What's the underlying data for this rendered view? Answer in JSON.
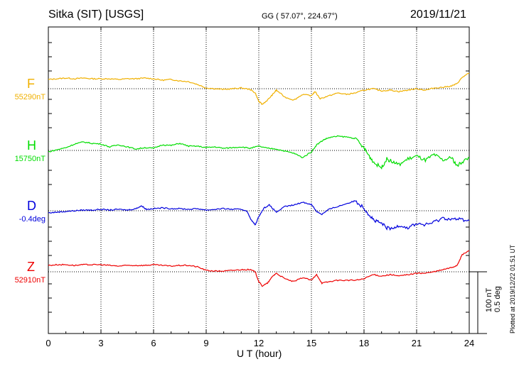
{
  "header": {
    "station": "Sitka (SIT)  [USGS]",
    "coords": "GG ( 57.07°, 224.67°)",
    "date": "2019/11/21"
  },
  "plotted": "Plotted at 2019/12/22 01:51  UT",
  "scale": {
    "nt": "100 nT",
    "deg": "0.5 deg"
  },
  "chart_data": {
    "type": "line",
    "xlabel": "U T (hour)",
    "xlim": [
      0,
      24
    ],
    "xticks": [
      0,
      3,
      6,
      9,
      12,
      15,
      18,
      21,
      24
    ],
    "xtick_labels": [
      "0",
      "3",
      "6",
      "9",
      "12",
      "15",
      "18",
      "21",
      "24"
    ],
    "grid": true,
    "series": [
      {
        "name": "F",
        "baseline_label": "55290nT",
        "color": "#f0b000",
        "x": [
          0,
          0.5,
          1,
          1.5,
          2,
          2.5,
          3,
          3.5,
          4,
          4.5,
          5,
          5.5,
          6,
          6.5,
          7,
          7.5,
          8,
          8.5,
          9,
          9.5,
          10,
          10.5,
          11,
          11.5,
          11.8,
          12,
          12.2,
          12.5,
          12.8,
          13,
          13.5,
          14,
          14.5,
          15,
          15.2,
          15.5,
          16,
          16.5,
          17,
          17.5,
          18,
          18.5,
          19,
          19.5,
          20,
          20.5,
          21,
          21.5,
          22,
          22.5,
          23,
          23.3,
          23.6,
          24
        ],
        "values": [
          13,
          14,
          15,
          14,
          15,
          14,
          14,
          14,
          13,
          14,
          14,
          15,
          14,
          12,
          13,
          11,
          10,
          6,
          1,
          0,
          -1,
          0,
          1,
          -1,
          -6,
          -18,
          -22,
          -16,
          -8,
          -2,
          -12,
          -16,
          -8,
          -10,
          -4,
          -14,
          -10,
          -6,
          -8,
          -6,
          -2,
          0,
          -3,
          -2,
          -4,
          -2,
          0,
          -2,
          1,
          2,
          4,
          7,
          16,
          22
        ]
      },
      {
        "name": "H",
        "baseline_label": "15750nT",
        "color": "#00dd00",
        "x": [
          0,
          0.5,
          1,
          1.5,
          2,
          2.5,
          3,
          3.5,
          4,
          4.5,
          5,
          5.5,
          6,
          6.5,
          7,
          7.5,
          8,
          8.5,
          9,
          9.5,
          10,
          10.5,
          11,
          11.5,
          12,
          12.5,
          13,
          13.5,
          14,
          14.5,
          15,
          15.3,
          15.7,
          16,
          16.5,
          17,
          17.5,
          18,
          18.3,
          18.6,
          19,
          19.3,
          19.6,
          20,
          20.5,
          21,
          21.5,
          22,
          22.5,
          23,
          23.3,
          23.6,
          24
        ],
        "values": [
          -2,
          1,
          4,
          9,
          12,
          10,
          9,
          5,
          8,
          5,
          2,
          4,
          3,
          8,
          7,
          10,
          6,
          6,
          4,
          5,
          3,
          4,
          5,
          3,
          6,
          3,
          2,
          -1,
          -4,
          -10,
          -2,
          8,
          15,
          18,
          20,
          19,
          17,
          3,
          -8,
          -18,
          -24,
          -12,
          -16,
          -20,
          -12,
          -8,
          -14,
          -6,
          -14,
          -10,
          -22,
          -16,
          -10
        ]
      },
      {
        "name": "D",
        "baseline_label": "-0.4deg",
        "color": "#0000dd",
        "x": [
          0,
          0.5,
          1,
          1.5,
          2,
          2.5,
          3,
          3.5,
          4,
          4.5,
          5,
          5.3,
          5.6,
          6,
          6.5,
          7,
          7.5,
          8,
          8.5,
          9,
          9.5,
          10,
          10.5,
          11,
          11.3,
          11.6,
          11.8,
          12,
          12.3,
          12.6,
          13,
          13.5,
          14,
          14.5,
          15,
          15.3,
          15.6,
          16,
          16.5,
          17,
          17.5,
          18,
          18.3,
          18.6,
          19,
          19.3,
          19.6,
          20,
          20.5,
          21,
          21.5,
          22,
          22.5,
          23,
          23.5,
          24
        ],
        "values": [
          -3,
          -2,
          -1,
          0,
          1,
          1,
          2,
          1,
          2,
          1,
          3,
          7,
          2,
          3,
          4,
          3,
          3,
          2,
          3,
          1,
          2,
          3,
          2,
          2,
          0,
          -14,
          -20,
          -8,
          4,
          8,
          -2,
          6,
          8,
          12,
          9,
          -1,
          -5,
          2,
          6,
          10,
          14,
          4,
          -6,
          -14,
          -18,
          -24,
          -26,
          -20,
          -24,
          -18,
          -20,
          -16,
          -10,
          -12,
          -12,
          -14
        ]
      },
      {
        "name": "Z",
        "baseline_label": "52910nT",
        "color": "#ee0000",
        "x": [
          0,
          0.5,
          1,
          1.5,
          2,
          2.5,
          3,
          3.5,
          4,
          4.5,
          5,
          5.5,
          6,
          6.5,
          7,
          7.5,
          8,
          8.5,
          9,
          9.5,
          10,
          10.5,
          11,
          11.5,
          11.8,
          12,
          12.2,
          12.5,
          12.8,
          13,
          13.5,
          14,
          14.5,
          15,
          15.3,
          15.6,
          16,
          16.5,
          17,
          17.5,
          18,
          18.5,
          19,
          19.5,
          20,
          20.5,
          21,
          21.5,
          22,
          22.5,
          23,
          23.3,
          23.6,
          24
        ],
        "values": [
          9,
          10,
          10,
          9,
          10,
          10,
          10,
          9,
          8,
          9,
          9,
          9,
          10,
          9,
          8,
          9,
          9,
          7,
          2,
          1,
          1,
          2,
          3,
          3,
          0,
          -14,
          -20,
          -16,
          -6,
          -2,
          -10,
          -14,
          -8,
          -12,
          -4,
          -16,
          -14,
          -12,
          -12,
          -12,
          -10,
          -4,
          -6,
          -4,
          -6,
          -4,
          -2,
          -2,
          0,
          3,
          6,
          9,
          24,
          30
        ]
      }
    ]
  }
}
